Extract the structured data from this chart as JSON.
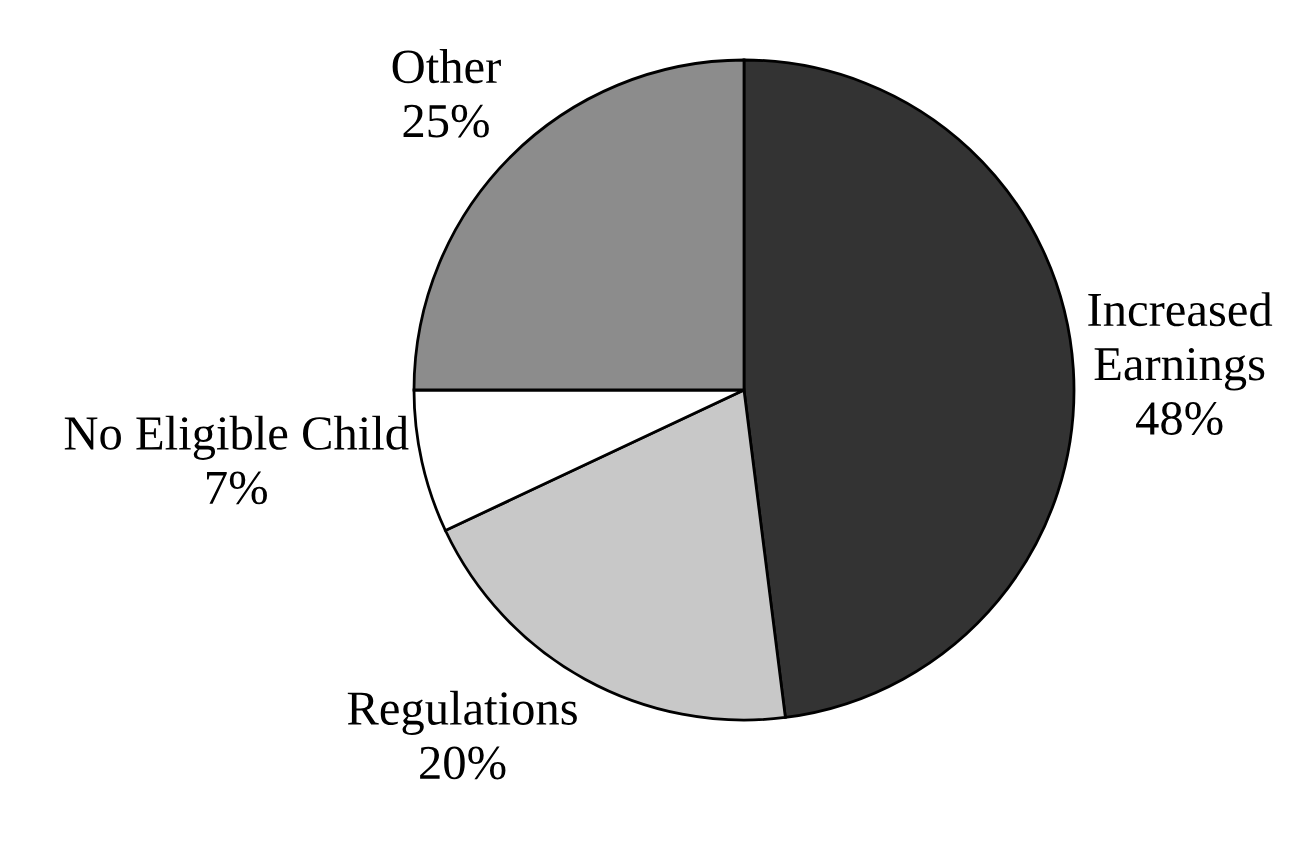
{
  "chart_data": {
    "type": "pie",
    "categories": [
      "Increased\nEarnings",
      "Regulations",
      "No Eligible Child",
      "Other"
    ],
    "values": [
      48,
      20,
      7,
      25
    ],
    "value_labels": [
      "48%",
      "20%",
      "7%",
      "25%"
    ],
    "colors": [
      "#333333",
      "#c8c8c8",
      "#ffffff",
      "#8c8c8c"
    ]
  }
}
